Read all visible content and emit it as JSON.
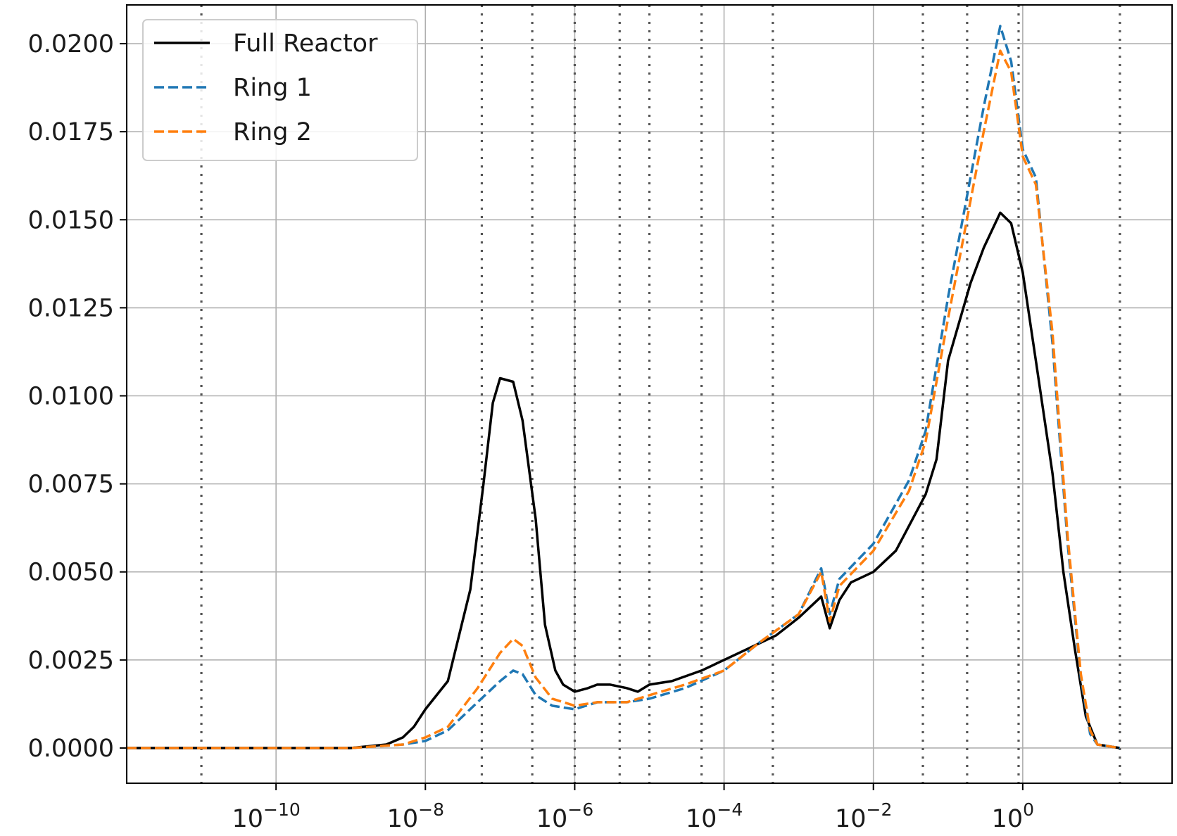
{
  "chart_data": {
    "type": "line",
    "title": "",
    "xlabel": "",
    "ylabel": "",
    "xscale": "log",
    "xlim": [
      1e-12,
      100
    ],
    "ylim": [
      -0.001,
      0.0211
    ],
    "grid": true,
    "legend_position": "top-left",
    "x_ticks": [
      {
        "exp": -10,
        "base": "10",
        "sup": "−10"
      },
      {
        "exp": -8,
        "base": "10",
        "sup": "−8"
      },
      {
        "exp": -6,
        "base": "10",
        "sup": "−6"
      },
      {
        "exp": -4,
        "base": "10",
        "sup": "−4"
      },
      {
        "exp": -2,
        "base": "10",
        "sup": "−2"
      },
      {
        "exp": 0,
        "base": "10",
        "sup": "0"
      }
    ],
    "y_ticks": [
      {
        "value": 0.0,
        "label": "0.0000"
      },
      {
        "value": 0.0025,
        "label": "0.0025"
      },
      {
        "value": 0.005,
        "label": "0.0050"
      },
      {
        "value": 0.0075,
        "label": "0.0075"
      },
      {
        "value": 0.01,
        "label": "0.0100"
      },
      {
        "value": 0.0125,
        "label": "0.0125"
      },
      {
        "value": 0.015,
        "label": "0.0150"
      },
      {
        "value": 0.0175,
        "label": "0.0175"
      },
      {
        "value": 0.02,
        "label": "0.0200"
      }
    ],
    "vertical_dotted_lines": [
      1e-11,
      5.7e-08,
      2.7e-07,
      1e-06,
      4e-06,
      1e-05,
      5e-05,
      0.00045,
      0.046,
      0.18,
      0.88,
      20
    ],
    "series": [
      {
        "name": "Full Reactor",
        "color": "#000000",
        "dash": "solid",
        "points": [
          [
            1e-12,
            0.0
          ],
          [
            1e-10,
            0.0
          ],
          [
            1e-09,
            0.0
          ],
          [
            3e-09,
            0.0001
          ],
          [
            5e-09,
            0.0003
          ],
          [
            7e-09,
            0.0006
          ],
          [
            1e-08,
            0.0011
          ],
          [
            2e-08,
            0.0019
          ],
          [
            4e-08,
            0.0045
          ],
          [
            6e-08,
            0.0075
          ],
          [
            8e-08,
            0.0098
          ],
          [
            1e-07,
            0.0105
          ],
          [
            1.5e-07,
            0.0104
          ],
          [
            2e-07,
            0.0093
          ],
          [
            3e-07,
            0.0065
          ],
          [
            4e-07,
            0.0035
          ],
          [
            5.5e-07,
            0.0022
          ],
          [
            7e-07,
            0.0018
          ],
          [
            1e-06,
            0.0016
          ],
          [
            1.5e-06,
            0.0017
          ],
          [
            2e-06,
            0.0018
          ],
          [
            3e-06,
            0.0018
          ],
          [
            5e-06,
            0.0017
          ],
          [
            7e-06,
            0.0016
          ],
          [
            1e-05,
            0.0018
          ],
          [
            2e-05,
            0.0019
          ],
          [
            5e-05,
            0.0022
          ],
          [
            0.0001,
            0.0025
          ],
          [
            0.0002,
            0.0028
          ],
          [
            0.0005,
            0.0032
          ],
          [
            0.001,
            0.0037
          ],
          [
            0.002,
            0.0043
          ],
          [
            0.0026,
            0.0034
          ],
          [
            0.0035,
            0.0042
          ],
          [
            0.005,
            0.0047
          ],
          [
            0.01,
            0.005
          ],
          [
            0.02,
            0.0056
          ],
          [
            0.05,
            0.0072
          ],
          [
            0.07,
            0.0082
          ],
          [
            0.1,
            0.011
          ],
          [
            0.2,
            0.0132
          ],
          [
            0.3,
            0.0142
          ],
          [
            0.5,
            0.0152
          ],
          [
            0.7,
            0.0149
          ],
          [
            1.0,
            0.0135
          ],
          [
            1.5,
            0.011
          ],
          [
            2.5,
            0.0078
          ],
          [
            3.5,
            0.005
          ],
          [
            5.0,
            0.0028
          ],
          [
            7.0,
            0.0009
          ],
          [
            10.0,
            0.0001
          ],
          [
            20.0,
            0.0
          ]
        ]
      },
      {
        "name": "Ring 1",
        "color": "#1f77b4",
        "dash": "dashed",
        "points": [
          [
            1e-12,
            0.0
          ],
          [
            1e-10,
            0.0
          ],
          [
            1e-09,
            0.0
          ],
          [
            5e-09,
            0.0001
          ],
          [
            1e-08,
            0.0002
          ],
          [
            2e-08,
            0.0005
          ],
          [
            5e-08,
            0.0013
          ],
          [
            1e-07,
            0.0019
          ],
          [
            1.5e-07,
            0.0022
          ],
          [
            2e-07,
            0.0021
          ],
          [
            3e-07,
            0.0015
          ],
          [
            5e-07,
            0.0012
          ],
          [
            1e-06,
            0.0011
          ],
          [
            2e-06,
            0.0013
          ],
          [
            5e-06,
            0.0013
          ],
          [
            1e-05,
            0.0014
          ],
          [
            3e-05,
            0.0017
          ],
          [
            0.0001,
            0.0022
          ],
          [
            0.0003,
            0.003
          ],
          [
            0.001,
            0.0038
          ],
          [
            0.002,
            0.0051
          ],
          [
            0.0026,
            0.0038
          ],
          [
            0.0035,
            0.0048
          ],
          [
            0.01,
            0.0058
          ],
          [
            0.03,
            0.0076
          ],
          [
            0.05,
            0.009
          ],
          [
            0.1,
            0.0128
          ],
          [
            0.3,
            0.0182
          ],
          [
            0.5,
            0.0205
          ],
          [
            0.7,
            0.0195
          ],
          [
            1.0,
            0.017
          ],
          [
            1.5,
            0.0162
          ],
          [
            2.5,
            0.0115
          ],
          [
            4.0,
            0.0058
          ],
          [
            6.0,
            0.002
          ],
          [
            8.0,
            0.0004
          ],
          [
            10.0,
            0.0001
          ],
          [
            20.0,
            0.0
          ]
        ]
      },
      {
        "name": "Ring 2",
        "color": "#ff7f0e",
        "dash": "dashed",
        "points": [
          [
            1e-12,
            0.0
          ],
          [
            1e-10,
            0.0
          ],
          [
            1e-09,
            0.0
          ],
          [
            5e-09,
            0.0001
          ],
          [
            1e-08,
            0.0003
          ],
          [
            2e-08,
            0.0006
          ],
          [
            5e-08,
            0.0017
          ],
          [
            1e-07,
            0.0027
          ],
          [
            1.5e-07,
            0.0031
          ],
          [
            2e-07,
            0.0029
          ],
          [
            3e-07,
            0.002
          ],
          [
            5e-07,
            0.0014
          ],
          [
            1e-06,
            0.0012
          ],
          [
            2e-06,
            0.0013
          ],
          [
            5e-06,
            0.0013
          ],
          [
            1e-05,
            0.0015
          ],
          [
            3e-05,
            0.0018
          ],
          [
            0.0001,
            0.0022
          ],
          [
            0.0003,
            0.003
          ],
          [
            0.001,
            0.0038
          ],
          [
            0.002,
            0.005
          ],
          [
            0.0026,
            0.0036
          ],
          [
            0.0035,
            0.0046
          ],
          [
            0.01,
            0.0056
          ],
          [
            0.03,
            0.0073
          ],
          [
            0.05,
            0.0087
          ],
          [
            0.1,
            0.0122
          ],
          [
            0.3,
            0.0175
          ],
          [
            0.5,
            0.0198
          ],
          [
            0.7,
            0.0192
          ],
          [
            1.0,
            0.0168
          ],
          [
            1.5,
            0.016
          ],
          [
            2.5,
            0.0118
          ],
          [
            4.0,
            0.006
          ],
          [
            6.0,
            0.0021
          ],
          [
            8.0,
            0.0005
          ],
          [
            10.0,
            0.0001
          ],
          [
            20.0,
            0.0
          ]
        ]
      }
    ]
  }
}
